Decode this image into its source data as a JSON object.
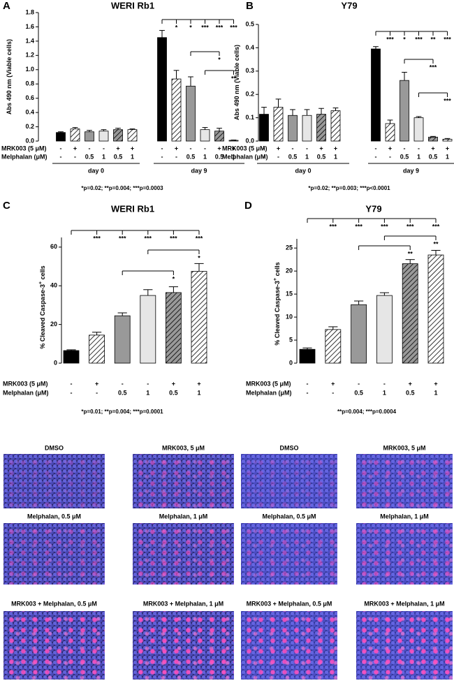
{
  "chart_data": [
    {
      "type": "bar",
      "panel": "A",
      "title": "WERI Rb1",
      "y_label": "Abs 490 nm (Viable cells)",
      "ylim": [
        0,
        1.8
      ],
      "yticks": [
        {
          "value": 0,
          "label": "0.0"
        },
        0.2,
        0.4,
        0.6,
        0.8,
        {
          "value": 1,
          "label": "1.0"
        },
        1.2,
        1.4,
        1.6,
        1.8
      ],
      "groups": [
        "day 0",
        "day 9"
      ],
      "rows": [
        {
          "label": "MRK003 (5 μM)",
          "values": [
            "-",
            "+",
            "-",
            "-",
            "+",
            "+",
            "-",
            "+",
            "-",
            "-",
            "+",
            "+"
          ]
        },
        {
          "label": "Melphalan (μM)",
          "values": [
            "-",
            "-",
            "0.5",
            "1",
            "0.5",
            "1",
            "-",
            "-",
            "0.5",
            "1",
            "0.5",
            "1"
          ]
        }
      ],
      "series": [
        {
          "color": "#000000",
          "hatch": false,
          "values": [
            0.12,
            1.45
          ],
          "errors": [
            0.01,
            0.1
          ]
        },
        {
          "color": "#ffffff",
          "hatch": true,
          "values": [
            0.17,
            0.87
          ],
          "errors": [
            0.02,
            0.12
          ]
        },
        {
          "color": "#999999",
          "hatch": false,
          "values": [
            0.13,
            0.77
          ],
          "errors": [
            0.02,
            0.13
          ]
        },
        {
          "color": "#e6e6e6",
          "hatch": false,
          "values": [
            0.14,
            0.16
          ],
          "errors": [
            0.02,
            0.03
          ]
        },
        {
          "color": "#999999",
          "hatch": true,
          "values": [
            0.16,
            0.14
          ],
          "errors": [
            0.02,
            0.04
          ]
        },
        {
          "color": "#ffffff",
          "hatch": true,
          "values": [
            0.16,
            0.01
          ],
          "errors": [
            0.01,
            0.005
          ]
        }
      ],
      "significance": [
        "*",
        "*",
        "***",
        "***",
        "***",
        "*",
        "**"
      ],
      "footnote": "*p=0.02; **p=0.004; ***p=0.0003"
    },
    {
      "type": "bar",
      "panel": "B",
      "title": "Y79",
      "y_label": "Abs 490 nm (Viable cells)",
      "ylim": [
        0,
        0.5
      ],
      "yticks": [
        {
          "value": 0,
          "label": "0.0"
        },
        0.1,
        0.2,
        0.3,
        0.4,
        0.5
      ],
      "groups": [
        "day 0",
        "day 9"
      ],
      "rows": [
        {
          "label": "MRK003 (5 μM)",
          "values": [
            "-",
            "+",
            "-",
            "-",
            "+",
            "+",
            "-",
            "+",
            "-",
            "-",
            "+",
            "+"
          ]
        },
        {
          "label": "Melphalan (μM)",
          "values": [
            "-",
            "-",
            "0.5",
            "1",
            "0.5",
            "1",
            "-",
            "-",
            "0.5",
            "1",
            "0.5",
            "1"
          ]
        }
      ],
      "series": [
        {
          "color": "#000000",
          "hatch": false,
          "values": [
            0.115,
            0.395
          ],
          "errors": [
            0.03,
            0.01
          ]
        },
        {
          "color": "#ffffff",
          "hatch": true,
          "values": [
            0.145,
            0.075
          ],
          "errors": [
            0.035,
            0.015
          ]
        },
        {
          "color": "#999999",
          "hatch": false,
          "values": [
            0.11,
            0.26
          ],
          "errors": [
            0.025,
            0.035
          ]
        },
        {
          "color": "#e6e6e6",
          "hatch": false,
          "values": [
            0.11,
            0.1
          ],
          "errors": [
            0.025,
            0.005
          ]
        },
        {
          "color": "#999999",
          "hatch": true,
          "values": [
            0.115,
            0.017
          ],
          "errors": [
            0.025,
            0.003
          ]
        },
        {
          "color": "#ffffff",
          "hatch": true,
          "values": [
            0.13,
            0.008
          ],
          "errors": [
            0.012,
            0.003
          ]
        }
      ],
      "significance": [
        "***",
        "*",
        "***",
        "**",
        "***",
        "***",
        "***"
      ],
      "footnote": "*p=0.02; **p=0.003; ***p<0.0001"
    },
    {
      "type": "bar",
      "panel": "C",
      "title": "WERI Rb1",
      "y_label": "% Cleaved Caspase-3",
      "y_label_sup": "+",
      "y_label_end": " cells",
      "ylim": [
        0,
        65
      ],
      "yticks": [
        0,
        20,
        40,
        60
      ],
      "rows": [
        {
          "label": "MRK003 (5 μM)",
          "values": [
            "-",
            "+",
            "-",
            "-",
            "+",
            "+"
          ]
        },
        {
          "label": "Melphalan (μM)",
          "values": [
            "-",
            "-",
            "0.5",
            "1",
            "0.5",
            "1"
          ]
        }
      ],
      "series": [
        {
          "color": "#000000",
          "hatch": false,
          "values": [
            6.5
          ],
          "errors": [
            0.4
          ]
        },
        {
          "color": "#ffffff",
          "hatch": true,
          "values": [
            14.5
          ],
          "errors": [
            1.5
          ]
        },
        {
          "color": "#999999",
          "hatch": false,
          "values": [
            24.5
          ],
          "errors": [
            1.5
          ]
        },
        {
          "color": "#e6e6e6",
          "hatch": false,
          "values": [
            35
          ],
          "errors": [
            3
          ]
        },
        {
          "color": "#999999",
          "hatch": true,
          "values": [
            36.5
          ],
          "errors": [
            3
          ]
        },
        {
          "color": "#ffffff",
          "hatch": true,
          "values": [
            47.5
          ],
          "errors": [
            4
          ]
        }
      ],
      "significance": [
        "***",
        "***",
        "***",
        "***",
        "***",
        "*",
        "*"
      ],
      "footnote": "*p=0.01; **p=0.004; ***p=0.0001"
    },
    {
      "type": "bar",
      "panel": "D",
      "title": "Y79",
      "y_label": "% Cleaved Caspase-3",
      "y_label_sup": "+",
      "y_label_end": " cells",
      "ylim": [
        0,
        27
      ],
      "yticks": [
        0,
        5,
        10,
        15,
        20,
        25
      ],
      "rows": [
        {
          "label": "MRK003 (5 μM)",
          "values": [
            "-",
            "+",
            "-",
            "-",
            "+",
            "+"
          ]
        },
        {
          "label": "Melphalan (μM)",
          "values": [
            "-",
            "-",
            "0.5",
            "1",
            "0.5",
            "1"
          ]
        }
      ],
      "series": [
        {
          "color": "#000000",
          "hatch": false,
          "values": [
            3
          ],
          "errors": [
            0.3
          ]
        },
        {
          "color": "#ffffff",
          "hatch": true,
          "values": [
            7.3
          ],
          "errors": [
            0.6
          ]
        },
        {
          "color": "#999999",
          "hatch": false,
          "values": [
            12.7
          ],
          "errors": [
            0.8
          ]
        },
        {
          "color": "#e6e6e6",
          "hatch": false,
          "values": [
            14.7
          ],
          "errors": [
            0.6
          ]
        },
        {
          "color": "#999999",
          "hatch": true,
          "values": [
            21.6
          ],
          "errors": [
            0.9
          ]
        },
        {
          "color": "#ffffff",
          "hatch": true,
          "values": [
            23.5
          ],
          "errors": [
            1.0
          ]
        }
      ],
      "significance": [
        "***",
        "***",
        "***",
        "***",
        "***",
        "**",
        "**"
      ],
      "footnote": "**p=0.004; ***p=0.0004"
    }
  ],
  "micrographs": [
    {
      "labels": [
        "DMSO",
        "MRK003, 5 μM",
        "Melphalan, 0.5 μM",
        "Melphalan, 1 μM",
        "MRK003 + Melphalan, 0.5 μM",
        "MRK003 + Melphalan, 1 μM"
      ]
    },
    {
      "labels": [
        "DMSO",
        "MRK003, 5 μM",
        "Melphalan, 0.5 μM",
        "Melphalan, 1 μM",
        "MRK003 + Melphalan, 0.5 μM",
        "MRK003 + Melphalan, 1 μM"
      ]
    }
  ]
}
